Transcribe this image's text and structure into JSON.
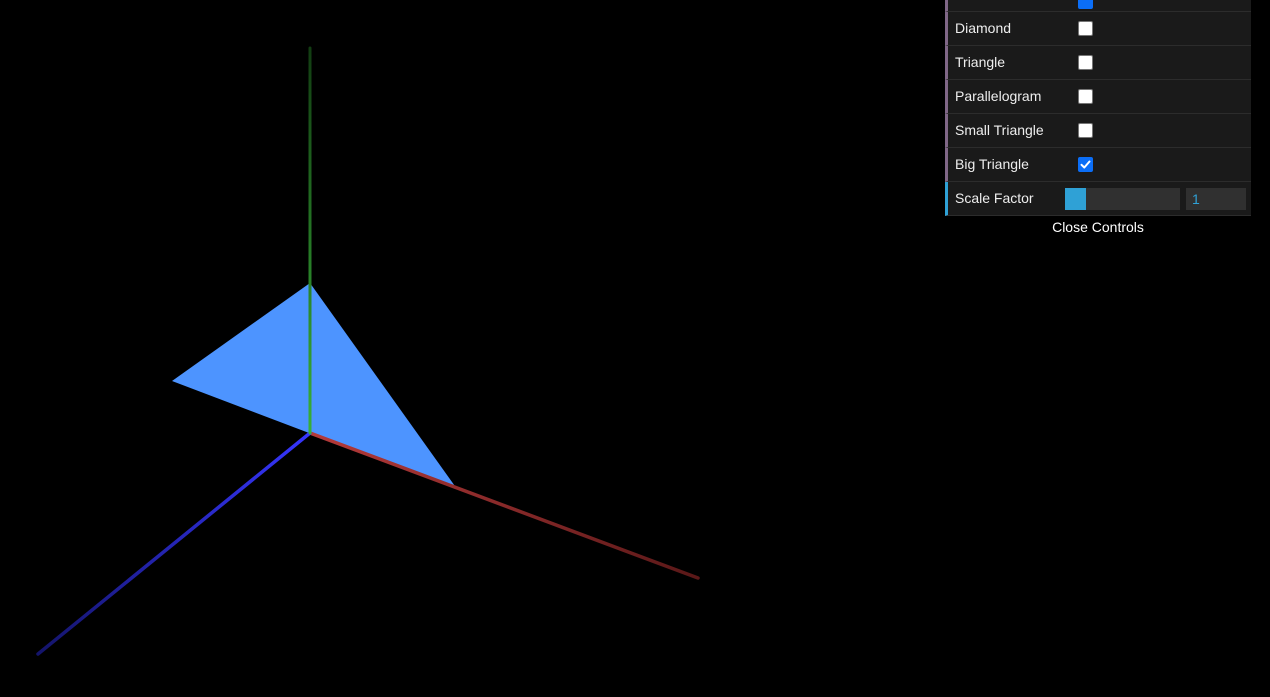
{
  "axes_colors": {
    "x_axis": "#b03030",
    "y_axis": "#2f9a2f",
    "z_axis": "#2f2fe8",
    "triangle_fill": "#4d94ff"
  },
  "controls": {
    "rows": [
      {
        "label": "Diamond",
        "checked": false
      },
      {
        "label": "Triangle",
        "checked": false
      },
      {
        "label": "Parallelogram",
        "checked": false
      },
      {
        "label": "Small Triangle",
        "checked": false
      },
      {
        "label": "Big Triangle",
        "checked": true
      }
    ],
    "scale_factor": {
      "label": "Scale Factor",
      "value": "1",
      "fill_fraction": 0.18
    },
    "close_label": "Close Controls"
  }
}
